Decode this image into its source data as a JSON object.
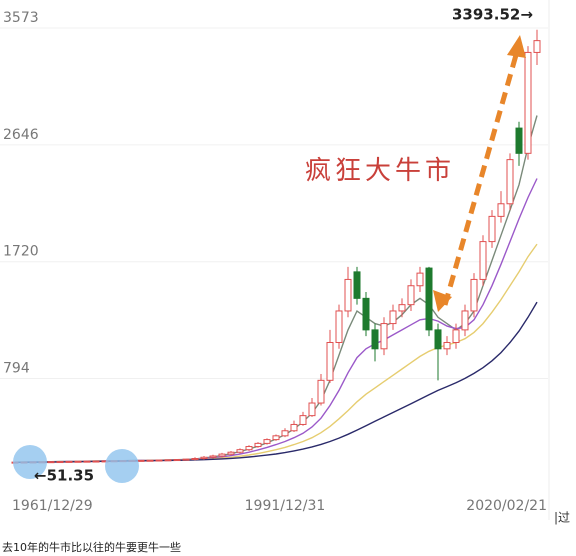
{
  "chart_data": {
    "type": "candlestick",
    "headline": "疯狂大牛市",
    "end_label": "3393.52→",
    "start_label": "←51.35",
    "side_text": "|过",
    "caption": "去10年的牛市比以往的牛要更牛一些",
    "categories": [
      "1961/12/29",
      null,
      null,
      null,
      null,
      null,
      null,
      null,
      null,
      null,
      null,
      null,
      null,
      null,
      null,
      null,
      null,
      null,
      null,
      null,
      null,
      null,
      null,
      null,
      null,
      null,
      null,
      null,
      null,
      null,
      "1991/12/31",
      null,
      null,
      null,
      null,
      null,
      null,
      null,
      null,
      null,
      null,
      null,
      null,
      null,
      null,
      null,
      null,
      null,
      null,
      null,
      null,
      null,
      null,
      null,
      null,
      null,
      null,
      null,
      "2020/02/21"
    ],
    "open": [
      51,
      51,
      52,
      53,
      54,
      55,
      56,
      57,
      58,
      59,
      60,
      61,
      62,
      63,
      64,
      65,
      66,
      68,
      70,
      72,
      75,
      80,
      90,
      100,
      115,
      130,
      150,
      175,
      200,
      230,
      260,
      300,
      350,
      420,
      520,
      700,
      1000,
      1250,
      1560,
      1350,
      1100,
      950,
      1150,
      1250,
      1300,
      1450,
      1590,
      1100,
      950,
      1000,
      1100,
      1250,
      1500,
      1800,
      2000,
      2100,
      2700,
      2500,
      3300
    ],
    "high": [
      53,
      54,
      55,
      56,
      57,
      58,
      59,
      60,
      61,
      62,
      63,
      64,
      65,
      66,
      67,
      68,
      70,
      72,
      74,
      77,
      90,
      100,
      110,
      125,
      140,
      160,
      185,
      210,
      240,
      270,
      320,
      380,
      450,
      560,
      750,
      1100,
      1300,
      1600,
      1600,
      1400,
      1150,
      1200,
      1300,
      1350,
      1500,
      1600,
      1600,
      1150,
      1050,
      1150,
      1300,
      1550,
      1850,
      2050,
      2200,
      2500,
      2750,
      3350,
      3480
    ],
    "low": [
      49,
      49,
      50,
      51,
      52,
      53,
      54,
      55,
      56,
      57,
      58,
      59,
      60,
      61,
      62,
      63,
      64,
      66,
      68,
      70,
      65,
      70,
      80,
      90,
      105,
      120,
      140,
      165,
      190,
      220,
      250,
      290,
      340,
      410,
      500,
      680,
      950,
      1200,
      1300,
      1050,
      850,
      900,
      1100,
      1200,
      1250,
      1400,
      1050,
      700,
      900,
      950,
      1050,
      1200,
      1450,
      1750,
      1950,
      2050,
      2400,
      2450,
      3200
    ],
    "close": [
      51.35,
      52,
      53,
      54,
      55,
      56,
      57,
      58,
      59,
      60,
      61,
      62,
      63,
      64,
      65,
      66,
      68,
      70,
      72,
      75,
      80,
      90,
      100,
      115,
      130,
      150,
      175,
      200,
      230,
      260,
      300,
      350,
      420,
      520,
      700,
      1000,
      1250,
      1500,
      1350,
      1100,
      950,
      1150,
      1250,
      1300,
      1450,
      1550,
      1100,
      950,
      1000,
      1100,
      1250,
      1500,
      1800,
      2000,
      2100,
      2450,
      2500,
      3300,
      3393.52
    ],
    "up_color": "#e05050",
    "down_color": "#1e7a2e",
    "series": [
      {
        "color": "#7a8a7a",
        "values": [
          51,
          52,
          53,
          54,
          55,
          56,
          57,
          58,
          59,
          60,
          61,
          62,
          63,
          64,
          65,
          66,
          67,
          69,
          71,
          73,
          77,
          85,
          93,
          105,
          118,
          135,
          155,
          178,
          205,
          235,
          270,
          315,
          370,
          440,
          540,
          700,
          900,
          1100,
          1250,
          1200,
          1150,
          1130,
          1160,
          1220,
          1300,
          1350,
          1300,
          1200,
          1150,
          1100,
          1150,
          1250,
          1450,
          1650,
          1850,
          2050,
          2250,
          2550,
          2800
        ]
      },
      {
        "color": "#9b59c9",
        "values": [
          51,
          51,
          52,
          53,
          54,
          55,
          56,
          57,
          58,
          59,
          60,
          61,
          62,
          63,
          64,
          65,
          66,
          67,
          69,
          71,
          74,
          79,
          85,
          93,
          103,
          115,
          130,
          148,
          168,
          190,
          215,
          245,
          280,
          330,
          400,
          500,
          620,
          760,
          880,
          950,
          990,
          1020,
          1060,
          1100,
          1140,
          1180,
          1190,
          1170,
          1130,
          1110,
          1120,
          1180,
          1300,
          1450,
          1620,
          1800,
          1980,
          2150,
          2300
        ]
      },
      {
        "color": "#e6cd70",
        "values": [
          51,
          51,
          51,
          52,
          53,
          54,
          55,
          56,
          57,
          58,
          59,
          60,
          61,
          62,
          63,
          64,
          65,
          66,
          67,
          69,
          71,
          74,
          78,
          83,
          90,
          98,
          108,
          120,
          134,
          150,
          168,
          190,
          215,
          245,
          285,
          335,
          395,
          460,
          530,
          590,
          640,
          690,
          740,
          790,
          840,
          890,
          930,
          960,
          980,
          1000,
          1030,
          1080,
          1150,
          1240,
          1340,
          1450,
          1560,
          1680,
          1780
        ]
      },
      {
        "color": "#2a2a6a",
        "values": [
          50,
          50,
          51,
          51,
          52,
          53,
          54,
          55,
          56,
          57,
          58,
          59,
          60,
          61,
          62,
          63,
          64,
          65,
          66,
          67,
          69,
          71,
          74,
          77,
          81,
          86,
          92,
          99,
          107,
          116,
          127,
          140,
          155,
          172,
          192,
          215,
          242,
          272,
          305,
          340,
          375,
          410,
          445,
          480,
          515,
          550,
          585,
          620,
          650,
          680,
          715,
          755,
          800,
          855,
          920,
          1000,
          1090,
          1200,
          1320
        ]
      }
    ],
    "ylim": [
      -130,
      3573
    ],
    "yticks": [
      794,
      1720,
      2646,
      3573
    ],
    "grid": true
  }
}
